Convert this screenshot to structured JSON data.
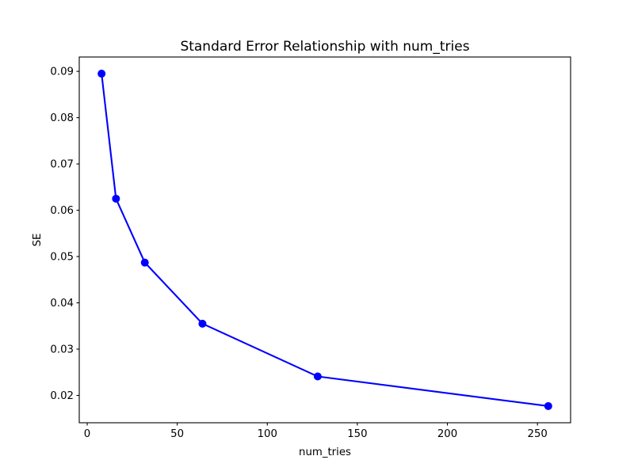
{
  "chart_data": {
    "type": "line",
    "title": "Standard Error Relationship with num_tries",
    "xlabel": "num_tries",
    "ylabel": "SE",
    "series": [
      {
        "name": "SE",
        "x": [
          8,
          16,
          32,
          64,
          128,
          256
        ],
        "y": [
          0.0895,
          0.0625,
          0.0487,
          0.0355,
          0.0241,
          0.0177
        ],
        "line_color": "#0000ff",
        "marker": "circle"
      }
    ],
    "xticks": [
      0,
      50,
      100,
      150,
      200,
      250
    ],
    "yticks": [
      0.02,
      0.03,
      0.04,
      0.05,
      0.06,
      0.07,
      0.08,
      0.09
    ],
    "ytick_decimals": 2,
    "xlim": [
      -4.4,
      268.4
    ],
    "ylim": [
      0.0141,
      0.0931
    ],
    "grid": false,
    "legend": null,
    "background_color": "#ffffff",
    "spine_color": "#000000"
  }
}
